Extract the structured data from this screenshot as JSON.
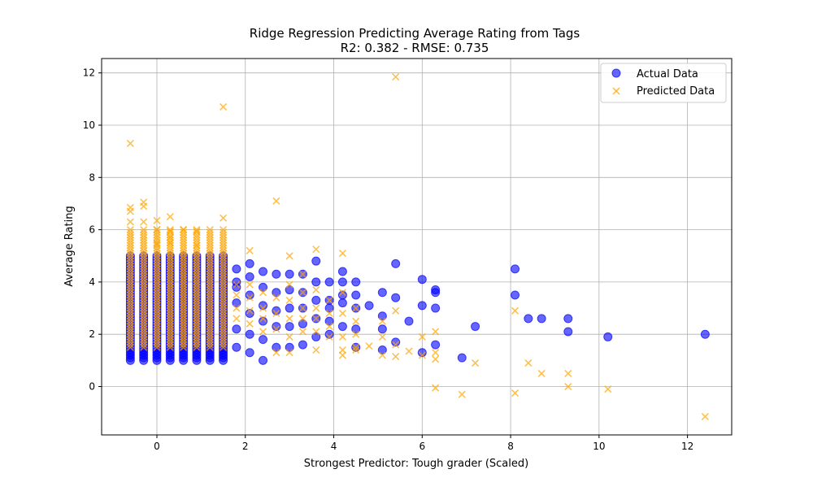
{
  "chart_data": {
    "type": "scatter",
    "title": "Ridge Regression Predicting Average Rating from Tags",
    "subtitle": "R2: 0.382 - RMSE: 0.735",
    "xlabel": "Strongest Predictor: Tough grader (Scaled)",
    "ylabel": "Average Rating",
    "xlim": [
      -1.25,
      13.0
    ],
    "ylim": [
      -1.85,
      12.55
    ],
    "x_ticks": [
      0,
      2,
      4,
      6,
      8,
      10,
      12
    ],
    "y_ticks": [
      0,
      2,
      4,
      6,
      8,
      10,
      12
    ],
    "grid": true,
    "legend_position": "top-right",
    "colors": {
      "actual": "#0000ff",
      "predicted": "#ffa500"
    },
    "dense_columns": {
      "x": [
        -0.6,
        -0.3,
        0.0,
        0.3,
        0.6,
        0.9,
        1.2,
        1.5
      ],
      "actual_range": [
        1.0,
        5.0
      ],
      "predicted_range": [
        1.5,
        6.0
      ]
    },
    "series": [
      {
        "name": "Actual Data",
        "marker": "circle",
        "points": [
          [
            1.8,
            4.5
          ],
          [
            1.8,
            3.8
          ],
          [
            1.8,
            2.2
          ],
          [
            1.8,
            1.5
          ],
          [
            1.8,
            4.0
          ],
          [
            1.8,
            3.2
          ],
          [
            2.1,
            4.7
          ],
          [
            2.1,
            4.2
          ],
          [
            2.1,
            3.5
          ],
          [
            2.1,
            2.8
          ],
          [
            2.1,
            2.0
          ],
          [
            2.1,
            1.3
          ],
          [
            2.4,
            4.4
          ],
          [
            2.4,
            3.8
          ],
          [
            2.4,
            3.1
          ],
          [
            2.4,
            2.5
          ],
          [
            2.4,
            1.8
          ],
          [
            2.4,
            1.0
          ],
          [
            2.7,
            4.3
          ],
          [
            2.7,
            3.6
          ],
          [
            2.7,
            2.9
          ],
          [
            2.7,
            2.3
          ],
          [
            2.7,
            1.5
          ],
          [
            3.0,
            4.3
          ],
          [
            3.0,
            3.7
          ],
          [
            3.0,
            3.0
          ],
          [
            3.0,
            2.3
          ],
          [
            3.0,
            1.5
          ],
          [
            3.3,
            4.3
          ],
          [
            3.3,
            3.6
          ],
          [
            3.3,
            3.0
          ],
          [
            3.3,
            2.4
          ],
          [
            3.3,
            1.6
          ],
          [
            3.6,
            4.8
          ],
          [
            3.6,
            4.0
          ],
          [
            3.6,
            3.3
          ],
          [
            3.6,
            2.6
          ],
          [
            3.6,
            1.9
          ],
          [
            3.9,
            4.0
          ],
          [
            3.9,
            3.3
          ],
          [
            3.9,
            3.0
          ],
          [
            3.9,
            2.5
          ],
          [
            3.9,
            2.0
          ],
          [
            4.2,
            4.4
          ],
          [
            4.2,
            4.0
          ],
          [
            4.2,
            3.5
          ],
          [
            4.2,
            3.2
          ],
          [
            4.2,
            2.3
          ],
          [
            4.5,
            4.0
          ],
          [
            4.5,
            3.5
          ],
          [
            4.5,
            3.0
          ],
          [
            4.5,
            2.2
          ],
          [
            4.5,
            1.5
          ],
          [
            4.8,
            3.1
          ],
          [
            5.1,
            3.6
          ],
          [
            5.1,
            2.7
          ],
          [
            5.1,
            2.2
          ],
          [
            5.1,
            1.4
          ],
          [
            5.4,
            4.7
          ],
          [
            5.4,
            3.4
          ],
          [
            5.4,
            1.7
          ],
          [
            5.7,
            2.5
          ],
          [
            6.0,
            4.1
          ],
          [
            6.0,
            3.1
          ],
          [
            6.0,
            1.3
          ],
          [
            6.3,
            3.7
          ],
          [
            6.3,
            3.6
          ],
          [
            6.3,
            3.0
          ],
          [
            6.3,
            1.6
          ],
          [
            6.9,
            1.1
          ],
          [
            7.2,
            2.3
          ],
          [
            8.1,
            4.5
          ],
          [
            8.1,
            3.5
          ],
          [
            8.4,
            2.6
          ],
          [
            8.7,
            2.6
          ],
          [
            9.3,
            2.6
          ],
          [
            9.3,
            2.1
          ],
          [
            10.2,
            1.9
          ],
          [
            12.4,
            2.0
          ]
        ]
      },
      {
        "name": "Predicted Data",
        "marker": "x",
        "points": [
          [
            -0.6,
            9.3
          ],
          [
            -0.6,
            6.85
          ],
          [
            -0.6,
            6.7
          ],
          [
            -0.6,
            6.3
          ],
          [
            -0.3,
            7.05
          ],
          [
            -0.3,
            6.9
          ],
          [
            -0.3,
            6.3
          ],
          [
            0.0,
            6.35
          ],
          [
            0.0,
            6.0
          ],
          [
            0.0,
            5.45
          ],
          [
            0.3,
            6.5
          ],
          [
            0.3,
            5.95
          ],
          [
            0.3,
            5.7
          ],
          [
            0.3,
            5.5
          ],
          [
            0.6,
            6.0
          ],
          [
            0.9,
            5.95
          ],
          [
            0.9,
            5.4
          ],
          [
            1.5,
            10.7
          ],
          [
            1.5,
            6.45
          ],
          [
            1.8,
            3.9
          ],
          [
            1.8,
            3.5
          ],
          [
            1.8,
            3.0
          ],
          [
            1.8,
            2.6
          ],
          [
            2.1,
            5.2
          ],
          [
            2.1,
            3.9
          ],
          [
            2.1,
            3.4
          ],
          [
            2.1,
            2.9
          ],
          [
            2.1,
            2.4
          ],
          [
            2.4,
            3.6
          ],
          [
            2.4,
            3.0
          ],
          [
            2.4,
            2.6
          ],
          [
            2.4,
            2.1
          ],
          [
            2.7,
            7.1
          ],
          [
            2.7,
            3.4
          ],
          [
            2.7,
            2.8
          ],
          [
            2.7,
            2.2
          ],
          [
            2.7,
            1.3
          ],
          [
            3.0,
            5.0
          ],
          [
            3.0,
            3.9
          ],
          [
            3.0,
            3.3
          ],
          [
            3.0,
            2.6
          ],
          [
            3.0,
            1.9
          ],
          [
            3.0,
            1.3
          ],
          [
            3.3,
            4.3
          ],
          [
            3.3,
            3.6
          ],
          [
            3.3,
            3.0
          ],
          [
            3.3,
            2.6
          ],
          [
            3.3,
            2.1
          ],
          [
            3.6,
            5.25
          ],
          [
            3.6,
            3.7
          ],
          [
            3.6,
            3.0
          ],
          [
            3.6,
            2.6
          ],
          [
            3.6,
            2.1
          ],
          [
            3.6,
            1.4
          ],
          [
            3.9,
            3.3
          ],
          [
            3.9,
            2.8
          ],
          [
            3.9,
            2.3
          ],
          [
            3.9,
            1.9
          ],
          [
            4.2,
            5.1
          ],
          [
            4.2,
            3.6
          ],
          [
            4.2,
            2.8
          ],
          [
            4.2,
            1.9
          ],
          [
            4.2,
            1.4
          ],
          [
            4.2,
            1.2
          ],
          [
            4.5,
            3.0
          ],
          [
            4.5,
            2.5
          ],
          [
            4.5,
            2.0
          ],
          [
            4.5,
            1.5
          ],
          [
            4.5,
            1.4
          ],
          [
            4.8,
            1.55
          ],
          [
            5.1,
            2.5
          ],
          [
            5.1,
            1.9
          ],
          [
            5.1,
            1.2
          ],
          [
            5.4,
            11.85
          ],
          [
            5.4,
            2.9
          ],
          [
            5.4,
            1.6
          ],
          [
            5.4,
            1.15
          ],
          [
            5.7,
            1.35
          ],
          [
            6.0,
            1.9
          ],
          [
            6.0,
            1.2
          ],
          [
            6.3,
            2.1
          ],
          [
            6.3,
            1.3
          ],
          [
            6.3,
            1.05
          ],
          [
            6.3,
            -0.05
          ],
          [
            6.9,
            -0.3
          ],
          [
            7.2,
            0.9
          ],
          [
            8.1,
            2.9
          ],
          [
            8.1,
            -0.25
          ],
          [
            8.4,
            0.9
          ],
          [
            8.7,
            0.5
          ],
          [
            9.3,
            0.5
          ],
          [
            9.3,
            0.0
          ],
          [
            10.2,
            -0.1
          ],
          [
            12.4,
            -1.15
          ]
        ]
      }
    ]
  }
}
